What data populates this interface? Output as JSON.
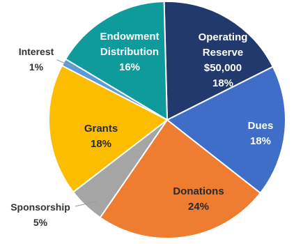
{
  "chart_data": {
    "type": "pie",
    "slices": [
      {
        "label": "Operating Reserve",
        "sublabel": "$50,000",
        "value": 18,
        "display": "18%",
        "color": "#22396e",
        "text_color": "#ffffff"
      },
      {
        "label": "Dues",
        "sublabel": "",
        "value": 18,
        "display": "18%",
        "color": "#3f6ec9",
        "text_color": "#ffffff"
      },
      {
        "label": "Donations",
        "sublabel": "",
        "value": 24,
        "display": "24%",
        "color": "#ee7c31",
        "text_color": "#2a2a2a"
      },
      {
        "label": "Sponsorship",
        "sublabel": "",
        "value": 5,
        "display": "5%",
        "color": "#a5a5a5",
        "text_color": "#333333"
      },
      {
        "label": "Grants",
        "sublabel": "",
        "value": 18,
        "display": "18%",
        "color": "#fcbc00",
        "text_color": "#2a2a2a"
      },
      {
        "label": "Interest",
        "sublabel": "",
        "value": 1,
        "display": "1%",
        "color": "#5b9bd5",
        "text_color": "#333333"
      },
      {
        "label": "Endowment Distribution",
        "sublabel": "",
        "value": 16,
        "display": "16%",
        "color": "#0f9a9b",
        "text_color": "#ffffff"
      }
    ],
    "title": "",
    "legend": "none",
    "labels": "on-slice and callout"
  }
}
